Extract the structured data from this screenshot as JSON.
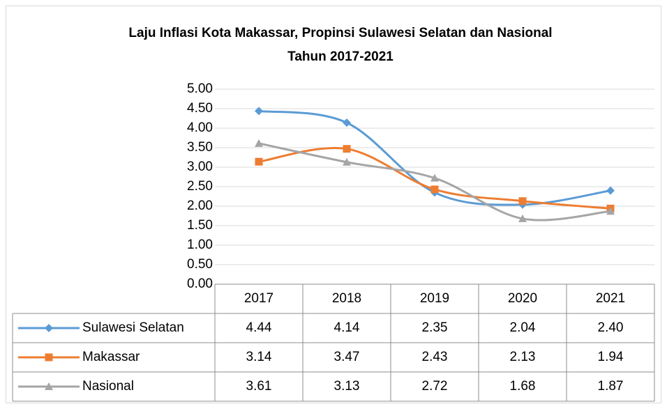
{
  "chart_data": {
    "type": "line",
    "title": [
      "Laju Inflasi Kota Makassar, Propinsi Sulawesi Selatan dan Nasional",
      "Tahun 2017-2021"
    ],
    "categories": [
      "2017",
      "2018",
      "2019",
      "2020",
      "2021"
    ],
    "series": [
      {
        "name": "Sulawesi Selatan",
        "color": "#5b9bd5",
        "marker": "diamond",
        "values": [
          4.44,
          4.14,
          2.35,
          2.04,
          2.4
        ],
        "value_labels": [
          "4.44",
          "4.14",
          "2.35",
          "2.04",
          "2.40"
        ]
      },
      {
        "name": "Makassar",
        "color": "#ed7d31",
        "marker": "square",
        "values": [
          3.14,
          3.47,
          2.43,
          2.13,
          1.94
        ],
        "value_labels": [
          "3.14",
          "3.47",
          "2.43",
          "2.13",
          "1.94"
        ]
      },
      {
        "name": "Nasional",
        "color": "#a5a5a5",
        "marker": "triangle",
        "values": [
          3.61,
          3.13,
          2.72,
          1.68,
          1.87
        ],
        "value_labels": [
          "3.61",
          "3.13",
          "2.72",
          "1.68",
          "1.87"
        ]
      }
    ],
    "ylim": [
      0,
      5
    ],
    "yticks": [
      {
        "value": 0,
        "label": "0.00"
      },
      {
        "value": 0.5,
        "label": "0.50"
      },
      {
        "value": 1,
        "label": "1.00"
      },
      {
        "value": 1.5,
        "label": "1.50"
      },
      {
        "value": 2,
        "label": "2.00"
      },
      {
        "value": 2.5,
        "label": "2.50"
      },
      {
        "value": 3,
        "label": "3.00"
      },
      {
        "value": 3.5,
        "label": "3.50"
      },
      {
        "value": 4,
        "label": "4.00"
      },
      {
        "value": 4.5,
        "label": "4.50"
      },
      {
        "value": 5,
        "label": "5.00"
      }
    ],
    "grid": true,
    "smooth": true
  }
}
